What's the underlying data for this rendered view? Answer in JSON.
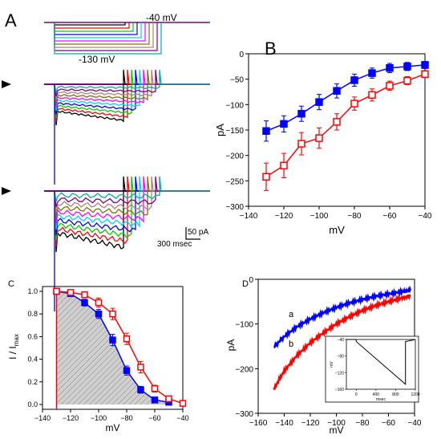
{
  "panels": {
    "A": {
      "label": "A",
      "protocol_top_label": "-40 mV",
      "protocol_bottom_label": "-130 mV",
      "scale_current": "50 pA",
      "scale_time": "300 msec",
      "trace_colors": [
        "#000000",
        "#ff0000",
        "#00cc00",
        "#0000ff",
        "#00d0ff",
        "#ff00ff",
        "#777700",
        "#b08080",
        "#800080",
        "#00aaaa"
      ]
    },
    "B": {
      "label": "B"
    },
    "C": {
      "label": "C"
    },
    "D": {
      "label": "D",
      "curve_a_label": "a",
      "curve_b_label": "b"
    }
  },
  "chart_data": [
    {
      "panel": "B",
      "type": "line",
      "xlabel": "mV",
      "ylabel": "pA",
      "xlim": [
        -140,
        -40
      ],
      "ylim": [
        -300,
        0
      ],
      "xticks": [
        -140,
        -120,
        -100,
        -80,
        -60,
        -40
      ],
      "yticks": [
        0,
        -50,
        -100,
        -150,
        -200,
        -250,
        -300
      ],
      "x": [
        -130,
        -120,
        -110,
        -100,
        -90,
        -80,
        -70,
        -60,
        -50,
        -40
      ],
      "series": [
        {
          "marker": "filled-square",
          "color": "#0000ff",
          "values": [
            -152,
            -138,
            -118,
            -95,
            -73,
            -52,
            -38,
            -28,
            -25,
            -22
          ],
          "errors": [
            20,
            16,
            15,
            15,
            14,
            12,
            10,
            9,
            8,
            7
          ]
        },
        {
          "marker": "open-square",
          "color": "#ff0000",
          "values": [
            -242,
            -220,
            -177,
            -166,
            -134,
            -98,
            -81,
            -63,
            -53,
            -40
          ],
          "errors": [
            27,
            24,
            22,
            20,
            16,
            13,
            12,
            9,
            8,
            7
          ]
        }
      ]
    },
    {
      "panel": "C",
      "type": "line",
      "xlabel": "mV",
      "ylabel": "I / I",
      "ylabel_sub": "max",
      "xlim": [
        -140,
        -40
      ],
      "ylim": [
        0,
        1.0
      ],
      "xticks": [
        -140,
        -120,
        -100,
        -80,
        -60,
        -40
      ],
      "yticks": [
        "0.0",
        "0.2",
        "0.4",
        "0.6",
        "0.8",
        "1.0"
      ],
      "shaded_region": true,
      "series": [
        {
          "marker": "filled-square",
          "color": "#0000ff",
          "x": [
            -130,
            -120,
            -110,
            -100,
            -90,
            -80,
            -70,
            -60,
            -50
          ],
          "values": [
            1.0,
            0.98,
            0.9,
            0.8,
            0.57,
            0.3,
            0.13,
            0.04,
            0.02
          ],
          "errors": [
            0,
            0.02,
            0.03,
            0.04,
            0.05,
            0.04,
            0.03,
            0.02,
            0.01
          ]
        },
        {
          "marker": "open-square",
          "color": "#ff0000",
          "x": [
            -130,
            -120,
            -110,
            -100,
            -90,
            -80,
            -70,
            -60,
            -50,
            -40
          ],
          "values": [
            1.0,
            0.99,
            0.97,
            0.9,
            0.8,
            0.58,
            0.33,
            0.14,
            0.05,
            0.01
          ],
          "errors": [
            0,
            0.01,
            0.02,
            0.04,
            0.05,
            0.05,
            0.05,
            0.03,
            0.02,
            0.01
          ]
        }
      ]
    },
    {
      "panel": "D",
      "type": "line",
      "xlabel": "mV",
      "ylabel": "pA",
      "xlim": [
        -160,
        -40
      ],
      "ylim": [
        -300,
        0
      ],
      "xticks": [
        -160,
        -140,
        -120,
        -100,
        -80,
        -60,
        -40
      ],
      "yticks": [
        0,
        -100,
        -200,
        -300
      ],
      "series": [
        {
          "name": "a",
          "color": "#0000ff",
          "x": [
            -148,
            -140,
            -130,
            -120,
            -110,
            -100,
            -90,
            -80,
            -70,
            -60,
            -50,
            -43
          ],
          "values": [
            -152,
            -128,
            -106,
            -89,
            -75,
            -63,
            -53,
            -45,
            -38,
            -33,
            -28,
            -25
          ]
        },
        {
          "name": "b",
          "color": "#ff0000",
          "x": [
            -148,
            -140,
            -130,
            -120,
            -110,
            -100,
            -90,
            -80,
            -70,
            -60,
            -50,
            -43
          ],
          "values": [
            -246,
            -205,
            -170,
            -142,
            -120,
            -100,
            -84,
            -70,
            -59,
            -50,
            -42,
            -37
          ]
        }
      ],
      "inset": {
        "type": "line",
        "xlabel": "msec",
        "ylabel": "mV",
        "xlim": [
          -200,
          1200
        ],
        "ylim": [
          -160,
          -40
        ],
        "xticks": [
          0,
          400,
          800,
          1200
        ],
        "yticks": [
          -40,
          -80,
          -120,
          -160
        ],
        "x": [
          -200,
          0,
          0,
          1000,
          1000,
          1200
        ],
        "values": [
          -40,
          -40,
          -45,
          -148,
          -45,
          -40
        ]
      }
    }
  ]
}
